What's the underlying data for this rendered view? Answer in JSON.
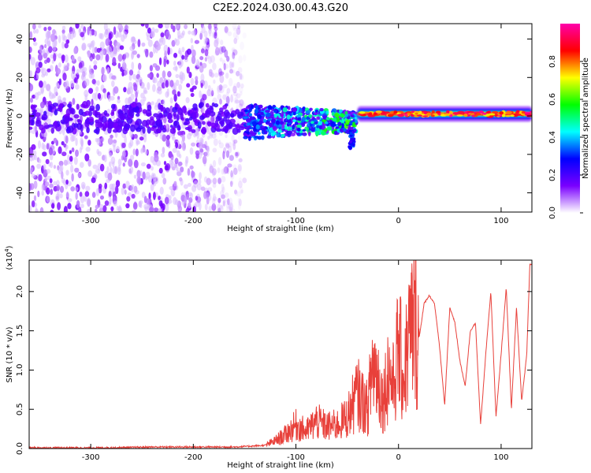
{
  "title": "C2E2.2024.030.00.43.G20",
  "colors": {
    "snr_line": "#e8403a",
    "axis": "#000000"
  },
  "chart_data": [
    {
      "type": "heatmap",
      "xlabel": "Height of straight line (km)",
      "ylabel": "Frequency (Hz)",
      "xlim": [
        -360,
        130
      ],
      "ylim": [
        -50,
        48
      ],
      "xticks": [
        -300,
        -200,
        -100,
        0,
        100
      ],
      "yticks": [
        -40,
        -20,
        0,
        20,
        40
      ],
      "grid": false,
      "colorbar": {
        "label": "Normalized spectral amplitude",
        "range": [
          0,
          1
        ],
        "ticks": [
          "0.0",
          "0.2",
          "0.4",
          "0.6",
          "0.8"
        ],
        "tick_values": [
          0,
          0.2,
          0.4,
          0.6,
          0.8
        ],
        "colormap": [
          "#ffffff",
          "#7a00ff",
          "#0000ff",
          "#00ffff",
          "#00ff00",
          "#ffff00",
          "#ff0000",
          "#ff00aa"
        ]
      },
      "regions": [
        {
          "x_range": [
            -360,
            -150
          ],
          "freq_range": [
            -50,
            48
          ],
          "amplitude": 0.1
        },
        {
          "x_range": [
            -150,
            -40
          ],
          "freq_range": [
            -15,
            8
          ],
          "amplitude": 0.35
        },
        {
          "x_range": [
            -40,
            130
          ],
          "freq_range": [
            -3,
            4
          ],
          "amplitude": 0.9
        }
      ]
    },
    {
      "type": "line",
      "xlabel": "Height of straight line (km)",
      "ylabel": "SNR (10 * v/v)",
      "scale_label": "(x10",
      "scale_exponent": "4",
      "scale_suffix": ")",
      "xlim": [
        -360,
        130
      ],
      "ylim": [
        0,
        2.4
      ],
      "xticks": [
        -300,
        -200,
        -100,
        0,
        100
      ],
      "yticks": [
        "0.0",
        "0.5",
        "1.0",
        "1.5",
        "2.0"
      ],
      "ytick_values": [
        0,
        0.5,
        1.0,
        1.5,
        2.0
      ],
      "grid": false,
      "series": [
        {
          "x": [
            -360,
            -320,
            -280,
            -240,
            -200,
            -160,
            -130,
            -120,
            -110,
            -100,
            -90,
            -80,
            -70,
            -60,
            -50,
            -40,
            -30,
            -25,
            -20,
            -15,
            -10,
            -5,
            0,
            5,
            10,
            15,
            20,
            25,
            30,
            35,
            40,
            45,
            50,
            55,
            60,
            65,
            70,
            75,
            80,
            85,
            90,
            95,
            100,
            105,
            110,
            115,
            120,
            125,
            128
          ],
          "y": [
            0.01,
            0.01,
            0.01,
            0.02,
            0.02,
            0.02,
            0.04,
            0.1,
            0.18,
            0.3,
            0.22,
            0.35,
            0.28,
            0.3,
            0.4,
            0.7,
            0.5,
            1.1,
            0.9,
            0.6,
            1.0,
            0.8,
            1.3,
            0.9,
            1.4,
            1.6,
            1.4,
            1.85,
            1.95,
            1.85,
            1.3,
            0.55,
            1.8,
            1.6,
            1.1,
            0.8,
            1.5,
            1.6,
            0.3,
            1.2,
            2.0,
            0.4,
            1.2,
            2.05,
            0.5,
            1.8,
            0.6,
            1.2,
            2.35
          ]
        }
      ]
    }
  ]
}
